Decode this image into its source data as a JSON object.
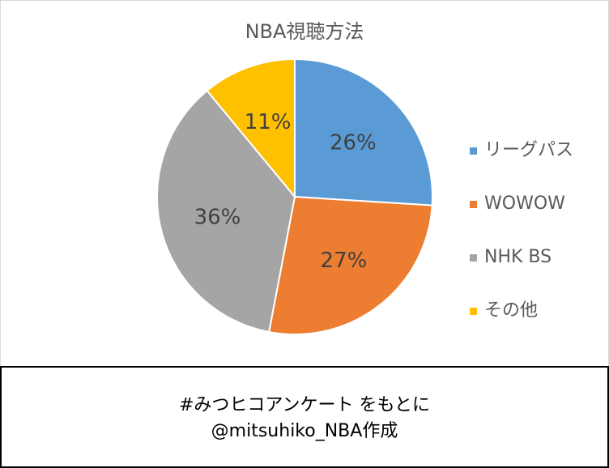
{
  "chart_data": {
    "type": "pie",
    "title": "NBA視聴方法",
    "categories": [
      "リーグパス",
      "WOWOW",
      "NHK BS",
      "その他"
    ],
    "values": [
      26,
      27,
      36,
      11
    ],
    "data_labels": [
      "26%",
      "27%",
      "36%",
      "11%"
    ],
    "colors": [
      "#5b9bd5",
      "#ed7d31",
      "#a5a5a5",
      "#ffc000"
    ],
    "start_angle": "12 o'clock, clockwise",
    "legend_position": "right",
    "label_color": "#404040"
  },
  "caption": {
    "line1": "#みつヒコアンケート をもとに",
    "line2": "@mitsuhiko_NBA作成"
  }
}
